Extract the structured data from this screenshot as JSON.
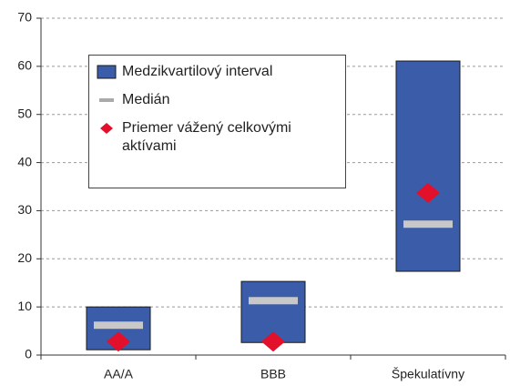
{
  "chart_data": {
    "type": "range",
    "categories": [
      "AA/A",
      "BBB",
      "Špekulatívny"
    ],
    "series": [
      {
        "name": "Medzikvartilový interval",
        "color": "#3b5ca8",
        "low": [
          1.1,
          2.6,
          17.4
        ],
        "high": [
          10.0,
          15.3,
          61.1
        ]
      },
      {
        "name": "Medián",
        "color": "#c8c8c8",
        "values": [
          6.2,
          11.3,
          27.2
        ]
      },
      {
        "name": "Priemer vážený celkovými aktívami",
        "color": "#e3102c",
        "values": [
          2.8,
          2.8,
          33.7
        ]
      }
    ],
    "ylim": [
      0,
      70
    ],
    "yticks": [
      0,
      10,
      20,
      30,
      40,
      50,
      60,
      70
    ],
    "grid": true
  }
}
